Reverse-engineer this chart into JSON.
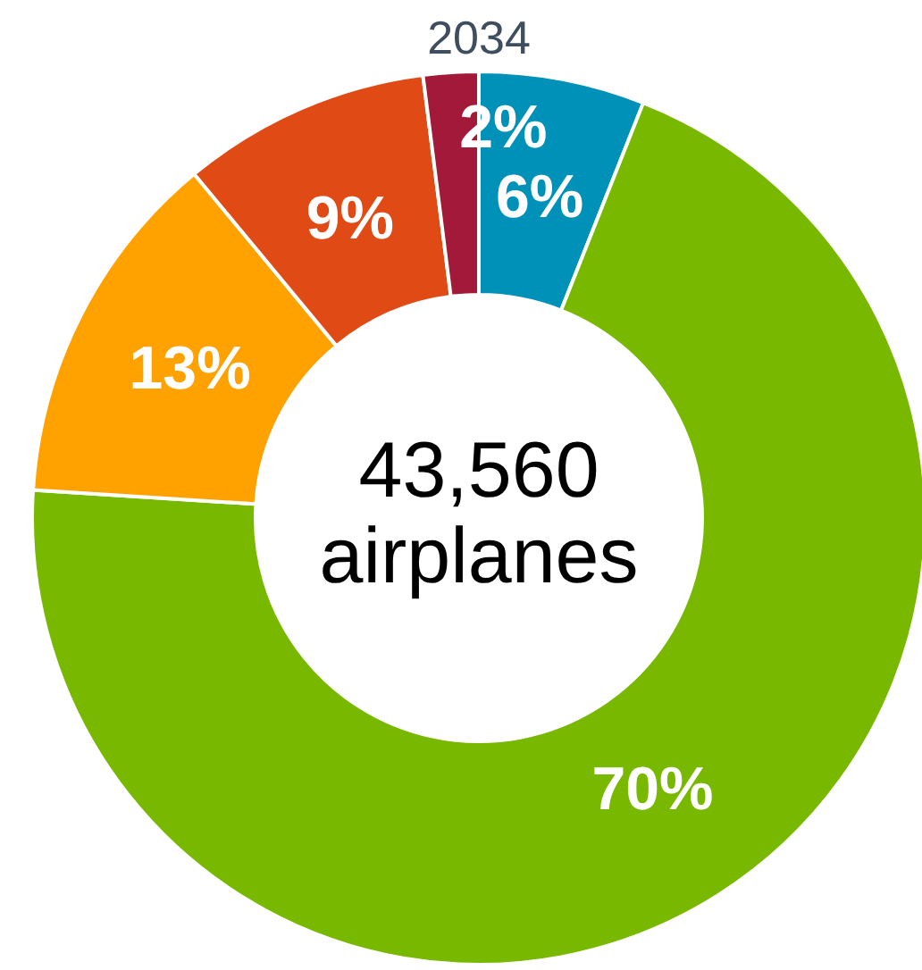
{
  "chart_data": {
    "type": "donut",
    "title": "2034",
    "categories": [
      null,
      null,
      null,
      null,
      null
    ],
    "values": [
      6,
      70,
      13,
      9,
      2
    ],
    "colors": [
      "#0091b9",
      "#78b900",
      "#ffa200",
      "#e04b15",
      "#a3193a"
    ],
    "value_labels": [
      "6%",
      "70%",
      "13%",
      "9%",
      "2%"
    ],
    "annotations": [
      "43,560",
      "airplanes"
    ]
  }
}
